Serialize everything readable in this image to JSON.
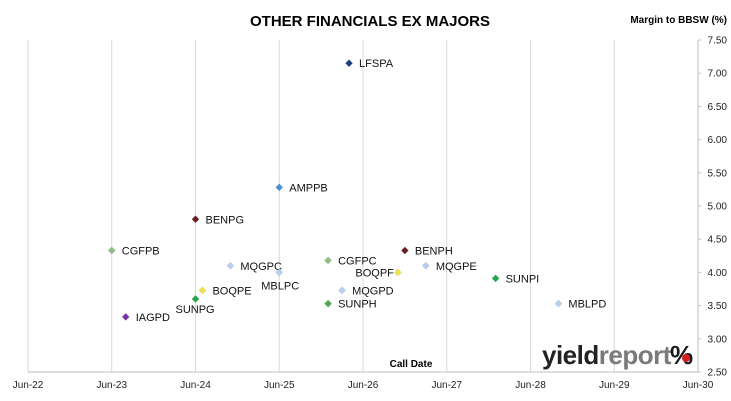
{
  "chart_data": {
    "type": "scatter",
    "title": "OTHER FINANCIALS EX MAJORS",
    "ylabel": "Margin to BBSW (%)",
    "xlabel": "Call Date",
    "x_ticks": [
      "Jun-22",
      "Jun-23",
      "Jun-24",
      "Jun-25",
      "Jun-26",
      "Jun-27",
      "Jun-28",
      "Jun-29",
      "Jun-30"
    ],
    "xlim": [
      "2022-06",
      "2030-06"
    ],
    "ylim": [
      2.5,
      7.5
    ],
    "y_ticks": [
      "2.50",
      "3.00",
      "3.50",
      "4.00",
      "4.50",
      "5.00",
      "5.50",
      "6.00",
      "6.50",
      "7.00",
      "7.50"
    ],
    "y_axis_position": "right",
    "grid": "vertical",
    "points": [
      {
        "label": "LFSPA",
        "x": "2026-04",
        "y": 7.15,
        "color": "#1f3f7a"
      },
      {
        "label": "AMPPB",
        "x": "2025-06",
        "y": 5.28,
        "color": "#4a90d9"
      },
      {
        "label": "BENPG",
        "x": "2024-06",
        "y": 4.8,
        "color": "#6b1c1c"
      },
      {
        "label": "CGFPB",
        "x": "2023-06",
        "y": 4.33,
        "color": "#8cc080"
      },
      {
        "label": "MQGPC",
        "x": "2024-11",
        "y": 4.1,
        "color": "#b8cfee"
      },
      {
        "label": "CGFPC",
        "x": "2026-01",
        "y": 4.18,
        "color": "#8cc080"
      },
      {
        "label": "BENPH",
        "x": "2026-12",
        "y": 4.33,
        "color": "#6b1c1c"
      },
      {
        "label": "MQGPE",
        "x": "2027-03",
        "y": 4.1,
        "color": "#b8cfee"
      },
      {
        "label": "BOQPF",
        "x": "2026-11",
        "y": 4.0,
        "color": "#f2e24a"
      },
      {
        "label": "MBLPC",
        "x": "2025-06",
        "y": 4.0,
        "color": "#b8cfee"
      },
      {
        "label": "SUNPI",
        "x": "2028-01",
        "y": 3.91,
        "color": "#22a84a"
      },
      {
        "label": "BOQPE",
        "x": "2024-07",
        "y": 3.73,
        "color": "#f2e24a"
      },
      {
        "label": "MQGPD",
        "x": "2026-03",
        "y": 3.73,
        "color": "#b8cfee"
      },
      {
        "label": "SUNPG",
        "x": "2024-06",
        "y": 3.6,
        "color": "#22a84a"
      },
      {
        "label": "SUNPH",
        "x": "2026-01",
        "y": 3.53,
        "color": "#4aa84a"
      },
      {
        "label": "MBLPD",
        "x": "2028-10",
        "y": 3.53,
        "color": "#b8cfee"
      },
      {
        "label": "IAGPD",
        "x": "2023-08",
        "y": 3.33,
        "color": "#7b2fa8"
      }
    ]
  },
  "logo": {
    "part1": "yield",
    "part2": "report",
    "part3": "%"
  }
}
